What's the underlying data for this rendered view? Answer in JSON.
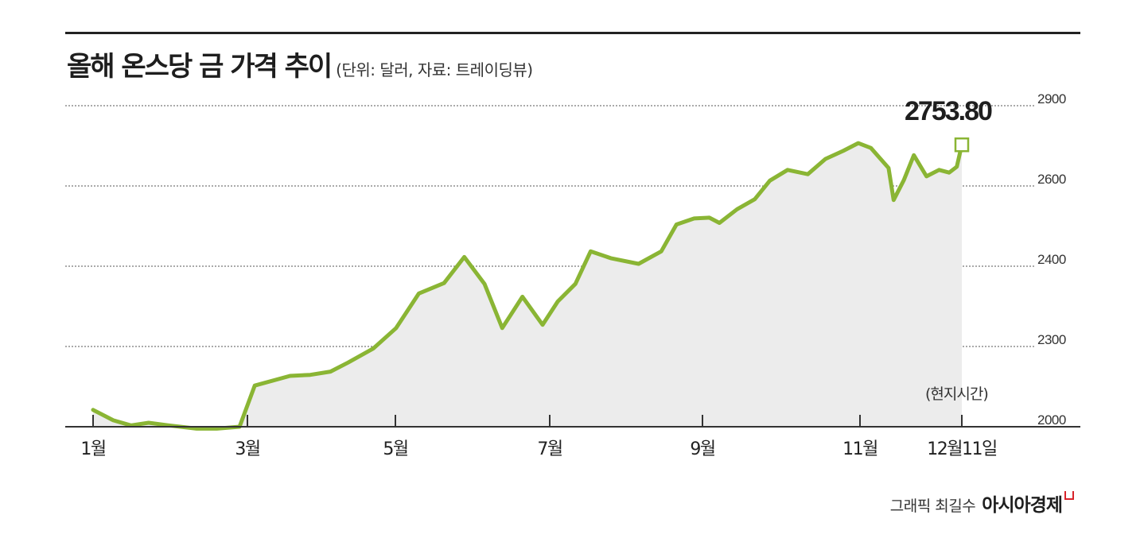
{
  "header": {
    "title": "올해 온스당 금 가격 추이",
    "subtitle": "(단위: 달러, 자료: 트레이딩뷰)"
  },
  "chart_data": {
    "type": "area",
    "y_ticks": [
      "2900",
      "2600",
      "2400",
      "2300",
      "2000"
    ],
    "x_labels": [
      "1월",
      "3월",
      "5월",
      "7월",
      "9월",
      "11월",
      "12월11일"
    ],
    "note": "(현지시간)",
    "last_value_label": "2753.80",
    "last_value": 2753.8,
    "y_scale": "nonlinear (axis breaks: ticks 2900, 2600, 2400, 2300, 2000 equally spaced)",
    "grid": true,
    "colors": {
      "line": "#8ab534",
      "area": "#ececec",
      "axis": "#333333"
    },
    "series": [
      {
        "points": [
          [
            "2024-01-02",
            2063
          ],
          [
            "2024-01-10",
            2024
          ],
          [
            "2024-01-17",
            2005
          ],
          [
            "2024-01-24",
            2015
          ],
          [
            "2024-02-01",
            2005
          ],
          [
            "2024-02-12",
            1993
          ],
          [
            "2024-02-20",
            1993
          ],
          [
            "2024-02-29",
            2000
          ],
          [
            "2024-03-06",
            2154
          ],
          [
            "2024-03-20",
            2190
          ],
          [
            "2024-03-28",
            2194
          ],
          [
            "2024-04-05",
            2206
          ],
          [
            "2024-04-12",
            2240
          ],
          [
            "2024-04-22",
            2293
          ],
          [
            "2024-05-01",
            2323
          ],
          [
            "2024-05-10",
            2366
          ],
          [
            "2024-05-20",
            2379
          ],
          [
            "2024-05-28",
            2423
          ],
          [
            "2024-06-05",
            2378
          ],
          [
            "2024-06-12",
            2323
          ],
          [
            "2024-06-20",
            2362
          ],
          [
            "2024-06-28",
            2327
          ],
          [
            "2024-07-04",
            2356
          ],
          [
            "2024-07-11",
            2378
          ],
          [
            "2024-07-17",
            2437
          ],
          [
            "2024-07-25",
            2420
          ],
          [
            "2024-08-05",
            2406
          ],
          [
            "2024-08-14",
            2437
          ],
          [
            "2024-08-20",
            2504
          ],
          [
            "2024-08-27",
            2519
          ],
          [
            "2024-09-02",
            2521
          ],
          [
            "2024-09-06",
            2508
          ],
          [
            "2024-09-13",
            2542
          ],
          [
            "2024-09-20",
            2567
          ],
          [
            "2024-09-26",
            2620
          ],
          [
            "2024-10-03",
            2660
          ],
          [
            "2024-10-11",
            2644
          ],
          [
            "2024-10-18",
            2701
          ],
          [
            "2024-10-25",
            2731
          ],
          [
            "2024-10-31",
            2760
          ],
          [
            "2024-11-05",
            2742
          ],
          [
            "2024-11-12",
            2667
          ],
          [
            "2024-11-14",
            2565
          ],
          [
            "2024-11-18",
            2621
          ],
          [
            "2024-11-22",
            2715
          ],
          [
            "2024-11-27",
            2636
          ],
          [
            "2024-12-02",
            2660
          ],
          [
            "2024-12-06",
            2650
          ],
          [
            "2024-12-09",
            2672
          ],
          [
            "2024-12-11",
            2753.8
          ]
        ]
      }
    ]
  },
  "footer": {
    "credit": "그래픽 최길수",
    "brand": "아시아경제"
  }
}
